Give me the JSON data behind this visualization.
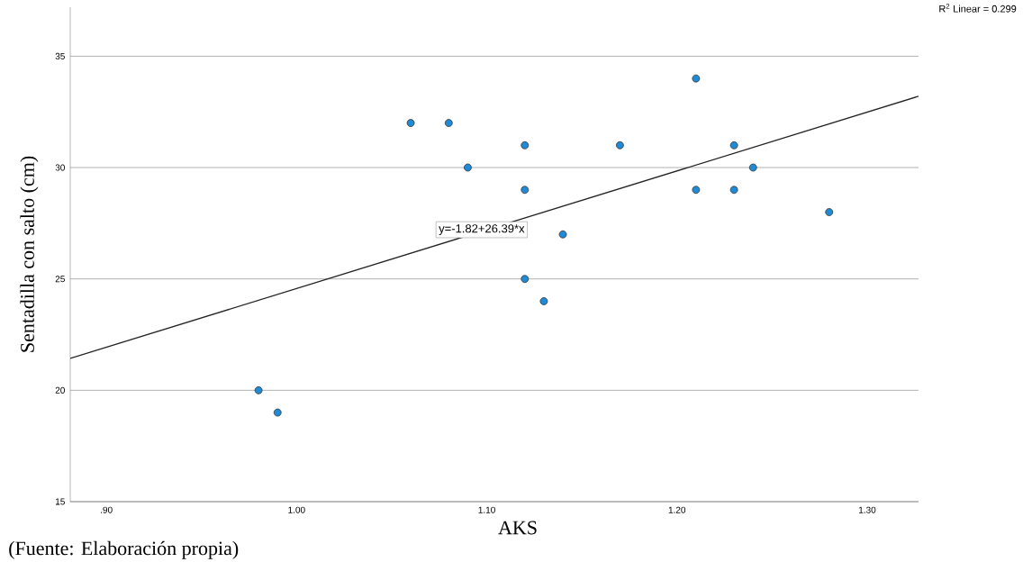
{
  "chart_data": {
    "type": "scatter",
    "xlabel": "AKS",
    "ylabel": "Sentadilla con salto (cm)",
    "xlim": [
      0.881,
      1.327
    ],
    "ylim": [
      15,
      37.2
    ],
    "xticks": [
      {
        "value": 0.9,
        "label": ".90"
      },
      {
        "value": 1.0,
        "label": "1.00"
      },
      {
        "value": 1.1,
        "label": "1.10"
      },
      {
        "value": 1.2,
        "label": "1.20"
      },
      {
        "value": 1.3,
        "label": "1.30"
      }
    ],
    "yticks": [
      15,
      20,
      25,
      30,
      35
    ],
    "grid": "y",
    "series": [
      {
        "marker": "circle",
        "color": "#1f8ad6",
        "x": [
          0.98,
          0.99,
          1.06,
          1.08,
          1.09,
          1.12,
          1.12,
          1.12,
          1.13,
          1.14,
          1.17,
          1.21,
          1.21,
          1.23,
          1.23,
          1.24,
          1.28
        ],
        "values": [
          20,
          19,
          32,
          32,
          30,
          31,
          29,
          25,
          24,
          27,
          31,
          34,
          29,
          31,
          29,
          30,
          28
        ]
      },
      {
        "type": "line",
        "color": "#222222",
        "x": [
          0.881,
          1.327
        ],
        "values": [
          21.43,
          33.2
        ]
      }
    ],
    "annotations": [
      "y=-1.82+26.39*x",
      "R$^{2}$ Linear = 0.299",
      "(Fuente: Elaboración propia)"
    ]
  }
}
